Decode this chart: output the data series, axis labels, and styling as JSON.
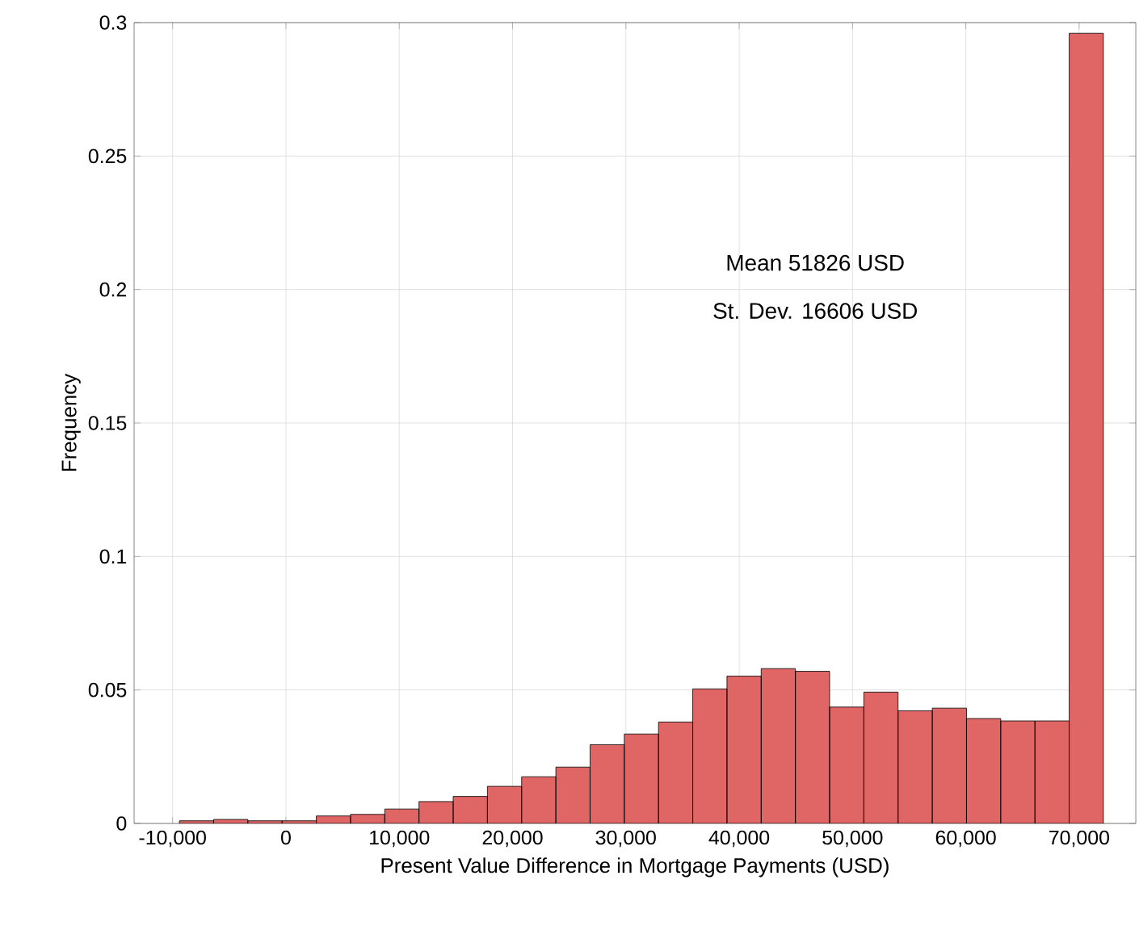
{
  "chart_data": {
    "type": "histogram",
    "xlabel": "Present Value Difference in Mortgage Payments (USD)",
    "ylabel": "Frequency",
    "annotations": [
      "Mean 51826 USD",
      "St. Dev. 16606 USD"
    ],
    "bins": [
      -9400,
      -6380,
      -3360,
      -340,
      2680,
      5700,
      8720,
      11740,
      14760,
      17780,
      20800,
      23820,
      26840,
      29860,
      32880,
      35900,
      38920,
      41940,
      44960,
      47980,
      51000,
      54020,
      57040,
      60060,
      63080,
      66100,
      69120,
      72140
    ],
    "values": [
      0.001,
      0.0015,
      0.001,
      0.001,
      0.0028,
      0.0034,
      0.0054,
      0.0082,
      0.0101,
      0.0139,
      0.0175,
      0.0211,
      0.0295,
      0.0335,
      0.038,
      0.0504,
      0.0552,
      0.058,
      0.057,
      0.0436,
      0.0492,
      0.0422,
      0.0432,
      0.0393,
      0.0384,
      0.0384,
      0.296
    ],
    "color": "#e06666",
    "grid": true,
    "xlim": [
      -13400,
      75000
    ],
    "ylim": [
      0,
      0.3
    ],
    "xticks": [
      {
        "value": -10000,
        "label": "-10,000"
      },
      0,
      {
        "value": 10000,
        "label": "10,000"
      },
      {
        "value": 20000,
        "label": "20,000"
      },
      {
        "value": 30000,
        "label": "30,000"
      },
      {
        "value": 40000,
        "label": "40,000"
      },
      {
        "value": 50000,
        "label": "50,000"
      },
      {
        "value": 60000,
        "label": "60,000"
      },
      {
        "value": 70000,
        "label": "70,000"
      }
    ],
    "yticks": [
      0,
      0.05,
      0.1,
      0.15,
      0.2,
      0.25,
      0.3
    ]
  }
}
